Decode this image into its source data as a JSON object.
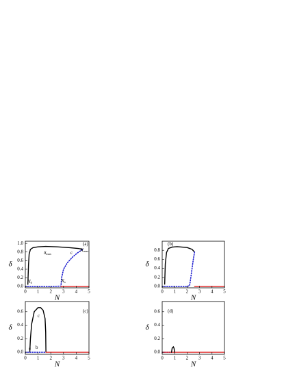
{
  "chart_data": [
    {
      "type": "line",
      "panel_label": "(a)",
      "xlabel": "N",
      "ylabel": "δ",
      "xlim": [
        0,
        5
      ],
      "xticks": [
        0,
        1,
        2,
        3,
        4,
        5
      ],
      "ylim": [
        -0.03,
        1.05
      ],
      "yticks": [
        {
          "value": 0,
          "label": "0.0"
        },
        {
          "value": 0.2,
          "label": "0.2"
        },
        {
          "value": 0.4,
          "label": "0.4"
        },
        {
          "value": 0.6,
          "label": "0.6"
        },
        {
          "value": 0.8,
          "label": "0.8"
        },
        {
          "value": 1.0,
          "label": "1.0"
        }
      ],
      "series": [
        {
          "color": "#000000",
          "style": "solid",
          "x": [
            0.2,
            0.25,
            0.3,
            0.4,
            0.6,
            1.0,
            1.6,
            2.5,
            3.5,
            4.2,
            4.5
          ],
          "values": [
            0.05,
            0.5,
            0.75,
            0.86,
            0.9,
            0.92,
            0.93,
            0.92,
            0.9,
            0.88,
            0.86
          ]
        },
        {
          "color": "#1f1fd0",
          "style": "dotted",
          "x": [
            0,
            1,
            2,
            2.8,
            2.85,
            3.0,
            3.3,
            3.7,
            4.1,
            4.5
          ],
          "values": [
            0,
            0,
            0,
            0.01,
            0.2,
            0.4,
            0.55,
            0.68,
            0.78,
            0.86
          ]
        },
        {
          "color": "#e02020",
          "style": "solid",
          "x": [
            2.8,
            5
          ],
          "values": [
            0,
            0
          ]
        }
      ],
      "annotations": [
        {
          "text": "(a)"
        },
        {
          "text": "δ",
          "sub": "max"
        },
        {
          "text": "N",
          "sub": "max"
        },
        {
          "text": "N",
          "sub": "0"
        },
        {
          "text": "N",
          "sub": "a"
        },
        {
          "text": "c"
        }
      ]
    },
    {
      "type": "line",
      "panel_label": "(b)",
      "xlabel": "N",
      "ylabel": "δ",
      "xlim": [
        0,
        5
      ],
      "xticks": [
        0,
        1,
        2,
        3,
        4,
        5
      ],
      "ylim": [
        -0.03,
        1.0
      ],
      "yticks": [
        {
          "value": 0,
          "label": "0.0"
        },
        {
          "value": 0.2,
          "label": "0.2"
        },
        {
          "value": 0.4,
          "label": "0.4"
        },
        {
          "value": 0.6,
          "label": "0.6"
        },
        {
          "value": 0.8,
          "label": "0.8"
        }
      ],
      "series": [
        {
          "color": "#000000",
          "style": "solid",
          "x": [
            0.2,
            0.25,
            0.35,
            0.5,
            0.8,
            1.2,
            1.6,
            2.0,
            2.4,
            2.6
          ],
          "values": [
            0.05,
            0.5,
            0.75,
            0.84,
            0.87,
            0.88,
            0.87,
            0.86,
            0.82,
            0.76
          ]
        },
        {
          "color": "#1f1fd0",
          "style": "dotted",
          "x": [
            0,
            1,
            2,
            2.2,
            2.3,
            2.4,
            2.5,
            2.6
          ],
          "values": [
            0,
            0,
            0,
            0.02,
            0.2,
            0.4,
            0.6,
            0.76
          ]
        },
        {
          "color": "#e02020",
          "style": "solid",
          "x": [
            2.6,
            5
          ],
          "values": [
            0,
            0
          ]
        }
      ],
      "annotations": [
        {
          "text": "(b)"
        }
      ]
    },
    {
      "type": "line",
      "panel_label": "(c)",
      "xlabel": "N",
      "ylabel": "δ",
      "xlim": [
        0,
        5
      ],
      "xticks": [
        0,
        1,
        2,
        3,
        4,
        5
      ],
      "ylim": [
        -0.03,
        0.75
      ],
      "yticks": [
        {
          "value": 0,
          "label": "0.0"
        },
        {
          "value": 0.2,
          "label": "0.2"
        },
        {
          "value": 0.4,
          "label": "0.4"
        },
        {
          "value": 0.6,
          "label": "0.6"
        }
      ],
      "series": [
        {
          "color": "#000000",
          "style": "solid",
          "x": [
            0.35,
            0.4,
            0.5,
            0.7,
            1.0,
            1.2,
            1.4,
            1.55,
            1.6,
            1.62
          ],
          "values": [
            0,
            0.2,
            0.42,
            0.6,
            0.66,
            0.66,
            0.62,
            0.5,
            0.3,
            0
          ]
        },
        {
          "color": "#1f1fd0",
          "style": "dotted",
          "x": [
            0,
            0.35,
            1.0,
            1.62
          ],
          "values": [
            0,
            0,
            0,
            0
          ]
        },
        {
          "color": "#e02020",
          "style": "solid",
          "x": [
            1.62,
            5
          ],
          "values": [
            0,
            0
          ]
        }
      ],
      "annotations": [
        {
          "text": "(c)"
        },
        {
          "text": "c"
        },
        {
          "text": "a"
        },
        {
          "text": "b"
        }
      ]
    },
    {
      "type": "line",
      "panel_label": "(d)",
      "xlabel": "N",
      "ylabel": "δ",
      "xlim": [
        0,
        5
      ],
      "xticks": [
        0,
        1,
        2,
        3,
        4,
        5
      ],
      "ylim": [
        -0.03,
        0.75
      ],
      "yticks": [
        {
          "value": 0,
          "label": "0.0"
        },
        {
          "value": 0.2,
          "label": "0.2"
        },
        {
          "value": 0.4,
          "label": "0.4"
        },
        {
          "value": 0.6,
          "label": "0.6"
        }
      ],
      "series": [
        {
          "color": "#1f1fd0",
          "style": "dotted",
          "x": [
            0,
            0.75
          ],
          "values": [
            0,
            0
          ]
        },
        {
          "color": "#e02020",
          "style": "solid",
          "x": [
            0,
            5
          ],
          "values": [
            0,
            0
          ]
        },
        {
          "color": "#000000",
          "style": "solid",
          "x": [
            0.75,
            0.8,
            0.9,
            0.95,
            1.0
          ],
          "values": [
            0,
            0.06,
            0.08,
            0.06,
            0
          ]
        }
      ],
      "annotations": [
        {
          "text": "(d)"
        }
      ]
    }
  ]
}
